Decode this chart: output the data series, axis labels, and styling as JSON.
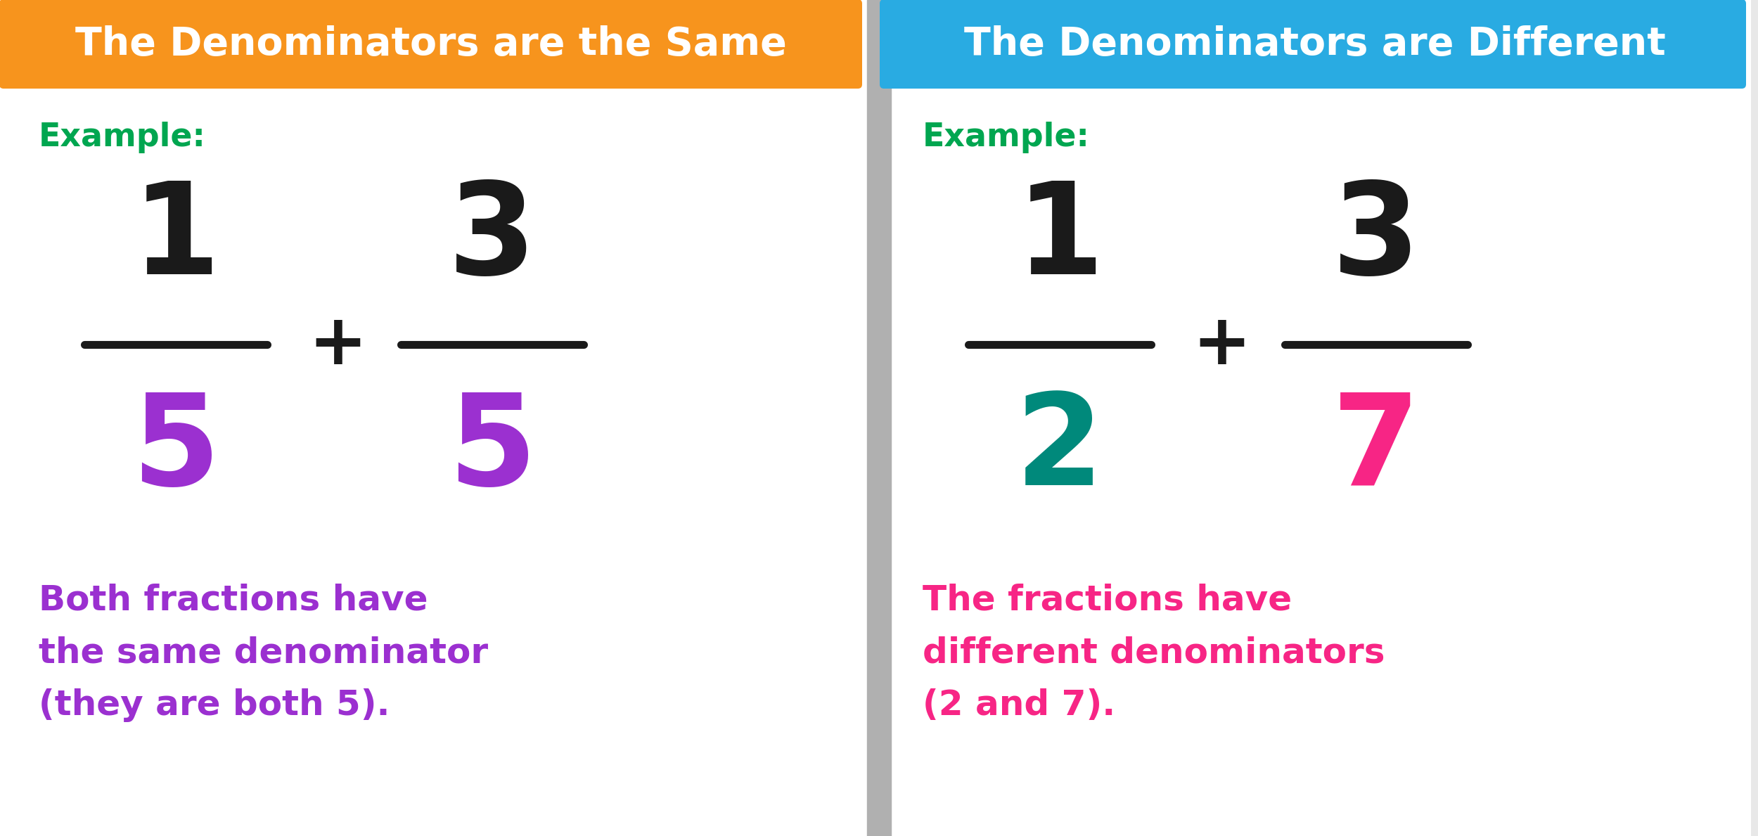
{
  "bg_color": "#e8e8e8",
  "left_panel_bg": "#ffffff",
  "right_panel_bg": "#ffffff",
  "divider_color": "#b0b0b0",
  "left_header_bg": "#f7941d",
  "right_header_bg": "#29abe2",
  "header_text_color": "#ffffff",
  "left_header_text": "The Denominators are the Same",
  "right_header_text": "The Denominators are Different",
  "example_color": "#00a650",
  "example_text": "Example:",
  "left_numerator1": "1",
  "left_numerator2": "3",
  "left_denominator1": "5",
  "left_denominator2": "5",
  "right_numerator1": "1",
  "right_numerator2": "3",
  "right_denominator1": "2",
  "right_denominator2": "7",
  "numerator_color": "#1a1a1a",
  "left_denominator_color": "#9b30d0",
  "right_denominator1_color": "#00897b",
  "right_denominator2_color": "#f72585",
  "fraction_line_color": "#1a1a1a",
  "plus_color": "#1a1a1a",
  "left_desc": "Both fractions have\nthe same denominator\n(they are both 5).",
  "right_desc": "The fractions have\ndifferent denominators\n(2 and 7).",
  "left_desc_color": "#9b30d0",
  "right_desc_color": "#f72585",
  "header_fontsize": 40,
  "example_fontsize": 33,
  "numerator_fontsize": 130,
  "denominator_fontsize": 130,
  "plus_fontsize": 72,
  "desc_fontsize": 36,
  "line_width": 8
}
